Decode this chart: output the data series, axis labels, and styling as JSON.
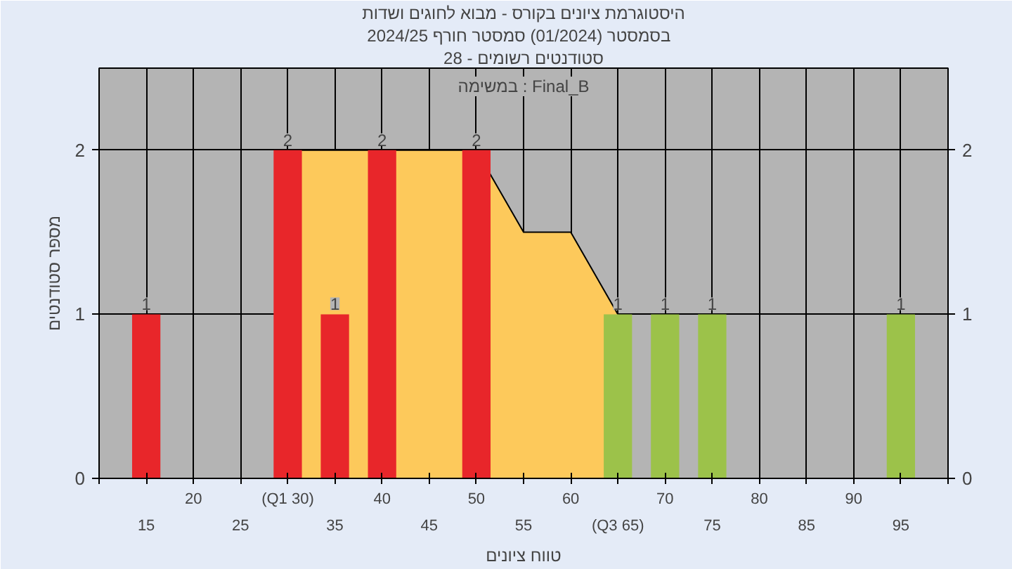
{
  "chart_data": {
    "type": "bar",
    "title": "היסטוגרמת ציונים בקורס - מבוא לחוגים ושדות",
    "subtitle": "בסמסטר  (01/2024)  סמסטר חורף 2024/25",
    "xlabel": "טווח ציונים",
    "ylabel": "מספר סטודנטים",
    "annotations": [
      "סטודנטים רשומים - 28",
      "במשימה : Final_B"
    ],
    "categories": [
      "15",
      "20",
      "25",
      "(Q1 30)",
      "35",
      "40",
      "45",
      "50",
      "55",
      "60",
      "(Q3 65)",
      "70",
      "75",
      "80",
      "85",
      "90",
      "95"
    ],
    "series": [
      {
        "type": "area",
        "color": "#fdc95b",
        "values": [
          null,
          null,
          null,
          2,
          2,
          2,
          2,
          2,
          1.5,
          1.5,
          1,
          null,
          null,
          null,
          null,
          null,
          null
        ]
      },
      {
        "colors": [
          "#e8262a",
          "#e8262a",
          "#e8262a",
          "#e8262a",
          "#e8262a",
          "#e8262a",
          "#e8262a",
          "#e8262a",
          "#e8262a",
          "#e8262a",
          "#9cc24a",
          "#9cc24a",
          "#9cc24a",
          "#9cc24a",
          "#9cc24a",
          "#9cc24a",
          "#9cc24a"
        ],
        "values": [
          1,
          0,
          0,
          2,
          1,
          2,
          0,
          2,
          0,
          0,
          1,
          1,
          1,
          0,
          0,
          0,
          1
        ],
        "value_labels": [
          "1",
          null,
          null,
          "2",
          "1",
          "2",
          null,
          "2",
          null,
          null,
          "1",
          "1",
          "1",
          null,
          null,
          null,
          "1"
        ]
      }
    ],
    "ylim": [
      0,
      2.5
    ],
    "yticks": [
      0,
      1,
      2
    ],
    "y2lim": [
      0,
      2.5
    ],
    "y2ticks": [
      0,
      1,
      2
    ],
    "grid": true
  }
}
